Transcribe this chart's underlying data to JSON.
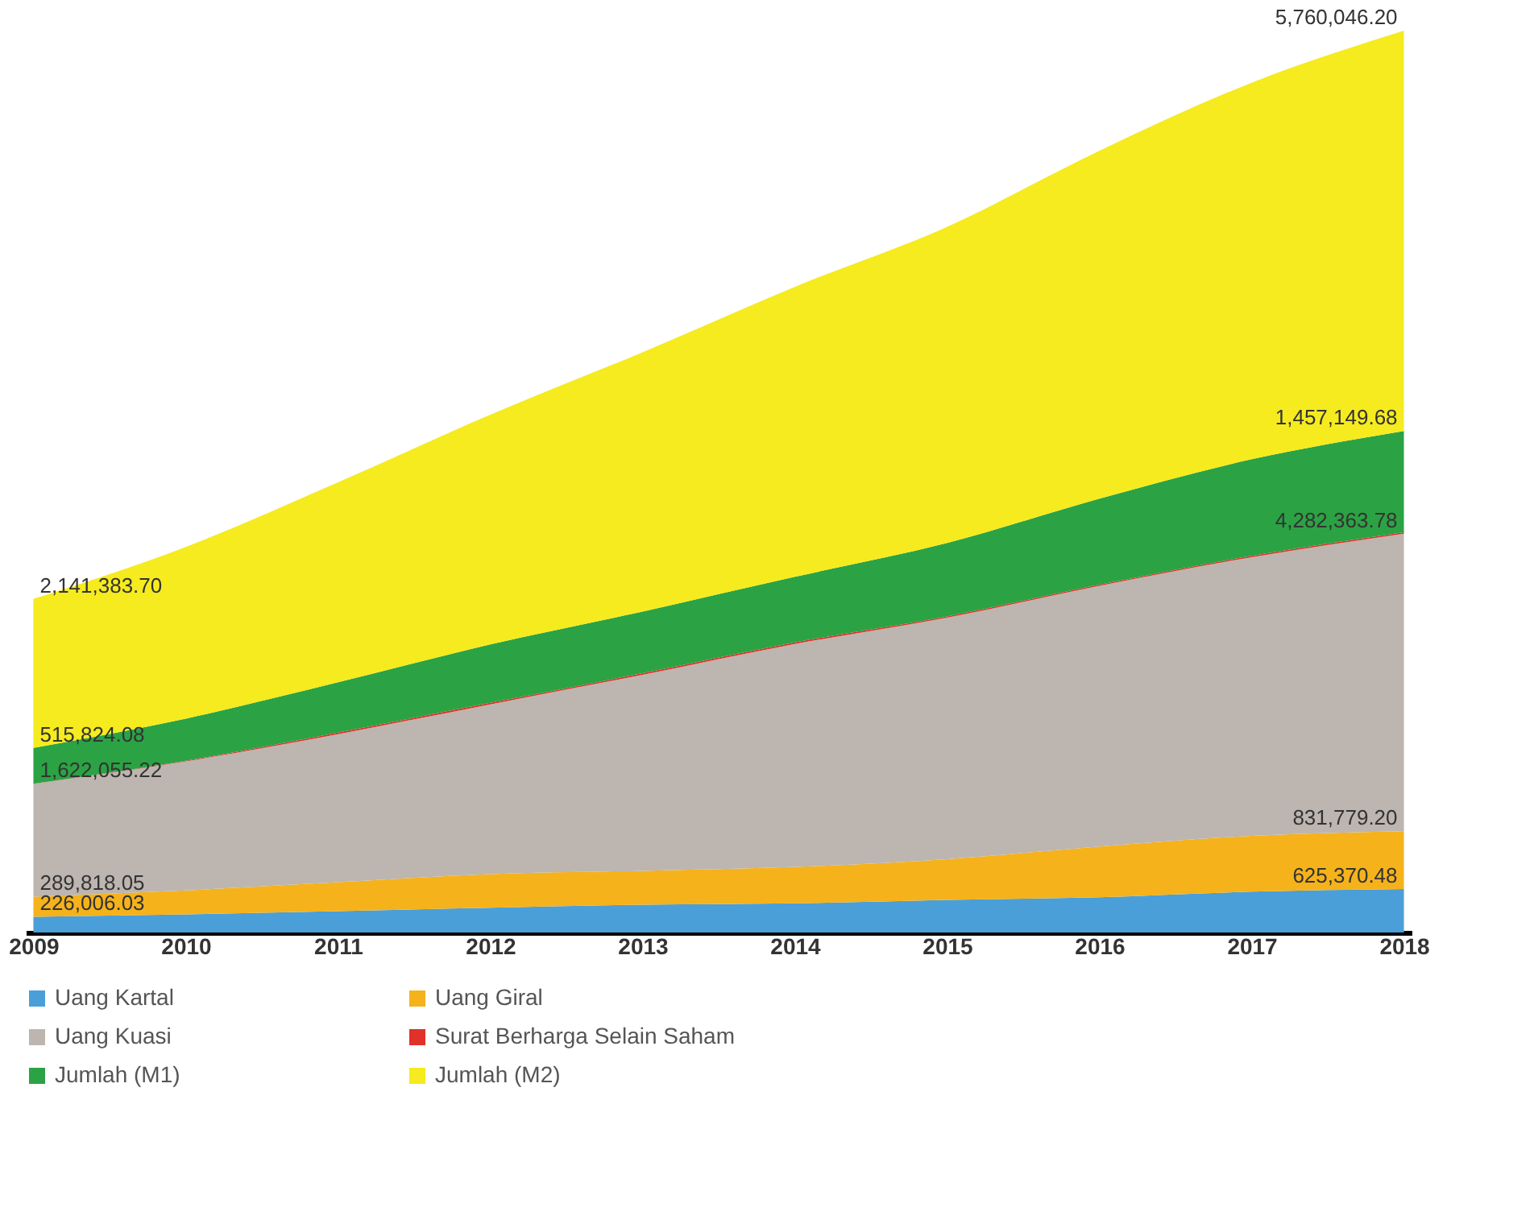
{
  "chart_data": {
    "type": "area",
    "stacked": true,
    "categories": [
      "2009",
      "2010",
      "2011",
      "2012",
      "2013",
      "2014",
      "2015",
      "2016",
      "2017",
      "2018"
    ],
    "series": [
      {
        "name": "Uang Kartal",
        "color": "#4a9fd8",
        "values": [
          226006.03,
          260227,
          307760,
          355000,
          399609,
          419262,
          469534,
          508124,
          586574,
          625370.48
        ],
        "value_labels": [
          "226,006.03",
          null,
          null,
          null,
          null,
          null,
          null,
          null,
          null,
          "625,370.48"
        ]
      },
      {
        "name": "Uang Giral",
        "color": "#f5b21b",
        "values": [
          289818.05,
          345383,
          415325,
          486000,
          488003,
          523977,
          585525,
          729281,
          803340,
          831779.2
        ],
        "value_labels": [
          "289,818.05",
          null,
          null,
          null,
          null,
          null,
          null,
          null,
          null,
          "831,779.20"
        ]
      },
      {
        "name": "Uang Kuasi",
        "color": "#bdb5b0",
        "values": [
          1622055.22,
          1856720,
          2131000,
          2442000,
          2820000,
          3207000,
          3475000,
          3750000,
          4010000,
          4282363.78
        ],
        "value_labels": [
          "1,622,055.22",
          null,
          null,
          null,
          null,
          null,
          null,
          null,
          null,
          "4,282,363.78"
        ]
      },
      {
        "name": "Surat Berharga Selain Saham",
        "color": "#e0312a",
        "values": [
          3200,
          9000,
          22000,
          21000,
          23000,
          24000,
          19000,
          18000,
          19000,
          20000
        ]
      },
      {
        "name": "Jumlah (M1)",
        "color": "#2ba344",
        "values": [
          515824.08,
          605610,
          723085,
          841000,
          887612,
          943239,
          1055059,
          1237405,
          1389914,
          1457149.68
        ],
        "value_labels": [
          "515,824.08",
          null,
          null,
          null,
          null,
          null,
          null,
          null,
          null,
          "1,457,149.68"
        ]
      },
      {
        "name": "Jumlah (M2)",
        "color": "#f5eb1f",
        "values": [
          2141383.7,
          2471206,
          2877220,
          3304000,
          3730000,
          4173000,
          4549000,
          5005000,
          5419000,
          5760046.2
        ],
        "value_labels": [
          "2,141,383.70",
          null,
          null,
          null,
          null,
          null,
          null,
          null,
          null,
          "5,760,046.20"
        ]
      }
    ],
    "legend": "bottom",
    "grid": false
  }
}
